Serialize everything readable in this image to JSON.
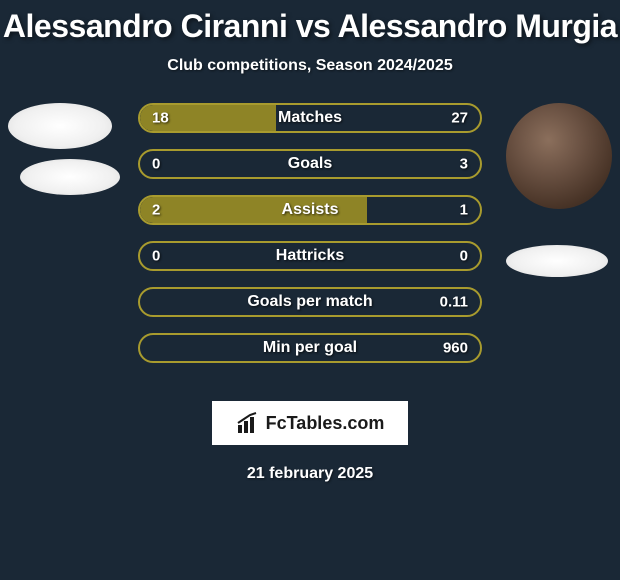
{
  "background_color": "#1a2836",
  "header": {
    "title": "Alessandro Ciranni vs Alessandro Murgia",
    "subtitle": "Club competitions, Season 2024/2025"
  },
  "player_left": {
    "name": "Alessandro Ciranni"
  },
  "player_right": {
    "name": "Alessandro Murgia"
  },
  "stats": [
    {
      "label": "Matches",
      "left_value": "18",
      "right_value": "27",
      "left_pct": 40,
      "right_pct": 60,
      "border_color": "#a89b2e",
      "left_fill_color": "#8e8426",
      "right_fill_color": "transparent"
    },
    {
      "label": "Goals",
      "left_value": "0",
      "right_value": "3",
      "left_pct": 0,
      "right_pct": 100,
      "border_color": "#a89b2e",
      "left_fill_color": "transparent",
      "right_fill_color": "transparent"
    },
    {
      "label": "Assists",
      "left_value": "2",
      "right_value": "1",
      "left_pct": 66.7,
      "right_pct": 33.3,
      "border_color": "#a89b2e",
      "left_fill_color": "#8e8426",
      "right_fill_color": "transparent"
    },
    {
      "label": "Hattricks",
      "left_value": "0",
      "right_value": "0",
      "left_pct": 0,
      "right_pct": 0,
      "border_color": "#a89b2e",
      "left_fill_color": "transparent",
      "right_fill_color": "transparent"
    },
    {
      "label": "Goals per match",
      "left_value": "",
      "right_value": "0.11",
      "left_pct": 0,
      "right_pct": 100,
      "border_color": "#a89b2e",
      "left_fill_color": "transparent",
      "right_fill_color": "transparent"
    },
    {
      "label": "Min per goal",
      "left_value": "",
      "right_value": "960",
      "left_pct": 0,
      "right_pct": 100,
      "border_color": "#a89b2e",
      "left_fill_color": "transparent",
      "right_fill_color": "transparent"
    }
  ],
  "footer": {
    "brand": "FcTables.com",
    "date": "21 february 2025"
  },
  "style": {
    "title_fontsize": 32,
    "subtitle_fontsize": 16,
    "stat_label_fontsize": 16,
    "stat_value_fontsize": 15,
    "text_color": "#ffffff",
    "accent_color": "#a89b2e",
    "fill_color": "#8e8426"
  }
}
